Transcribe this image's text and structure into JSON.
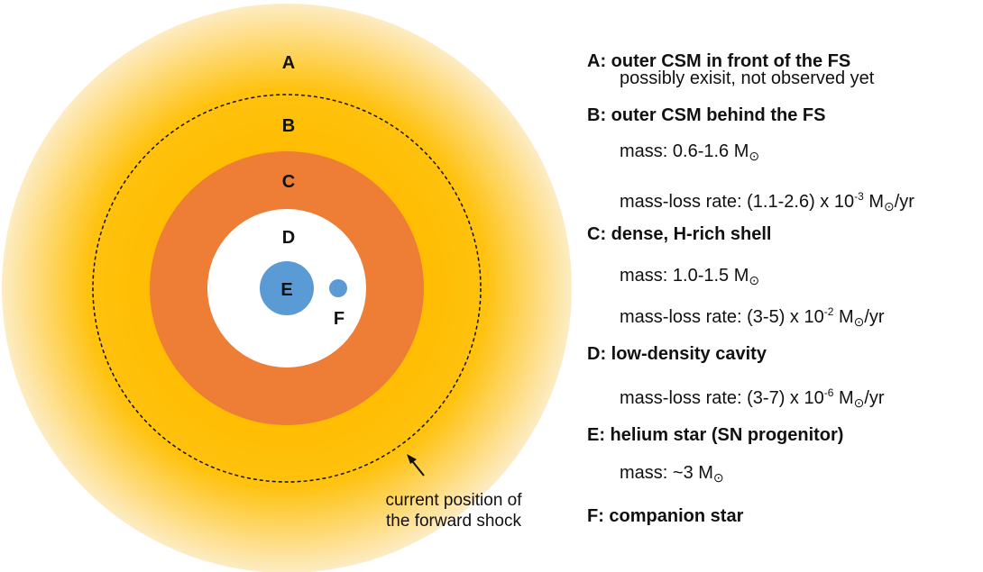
{
  "diagram": {
    "labels": [
      "A",
      "B",
      "C",
      "D",
      "E",
      "F"
    ],
    "annotation": [
      "current position of",
      "the forward shock"
    ]
  },
  "legend": [
    {
      "title": "A: outer CSM in front of the FS",
      "lines": [
        [
          "possibly exisit, not observed yet"
        ]
      ]
    },
    {
      "title": "B: outer CSM behind the FS",
      "lines": [
        [
          "mass: 0.6-1.6 M",
          "⊙"
        ],
        [
          "mass-loss rate: (1.1-2.6) x 10",
          "-3",
          " M",
          "⊙",
          "/yr"
        ]
      ]
    },
    {
      "title": "C: dense, H-rich shell",
      "lines": [
        [
          "mass: 1.0-1.5 M",
          "⊙"
        ],
        [
          "mass-loss rate: (3-5) x 10",
          "-2",
          " M",
          "⊙",
          "/yr"
        ]
      ]
    },
    {
      "title": "D: low-density cavity",
      "lines": [
        [
          "mass-loss rate: (3-7) x 10",
          "-6",
          " M",
          "⊙",
          "/yr"
        ]
      ]
    },
    {
      "title": "E: helium star (SN progenitor)",
      "lines": [
        [
          "mass: ~3 M",
          "⊙"
        ]
      ]
    },
    {
      "title": "F: companion star",
      "lines": []
    }
  ]
}
